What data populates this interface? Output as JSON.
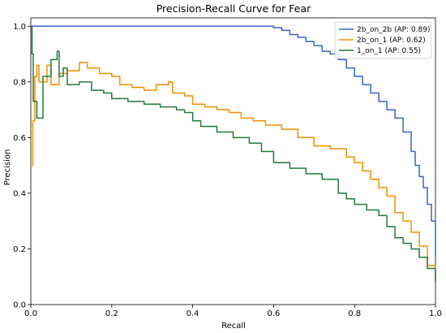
{
  "chart_data": {
    "type": "line",
    "title": "Precision-Recall Curve for Fear",
    "xlabel": "Recall",
    "ylabel": "Precision",
    "xlim": [
      0.0,
      1.0
    ],
    "ylim": [
      0.0,
      1.03
    ],
    "xticks": [
      "0.0",
      "0.2",
      "0.4",
      "0.6",
      "0.8",
      "1.0"
    ],
    "yticks": [
      "0.0",
      "0.2",
      "0.4",
      "0.6",
      "0.8",
      "1.0"
    ],
    "grid": false,
    "legend_position": "top-right",
    "series": [
      {
        "name": "2b_on_2b (AP: 0.89)",
        "color": "#3a64c8",
        "points": [
          [
            0.0,
            1.0
          ],
          [
            0.05,
            1.0
          ],
          [
            0.1,
            1.0
          ],
          [
            0.2,
            1.0
          ],
          [
            0.3,
            1.0
          ],
          [
            0.4,
            1.0
          ],
          [
            0.5,
            1.0
          ],
          [
            0.58,
            1.0
          ],
          [
            0.6,
            0.995
          ],
          [
            0.62,
            0.985
          ],
          [
            0.64,
            0.97
          ],
          [
            0.66,
            0.96
          ],
          [
            0.68,
            0.945
          ],
          [
            0.7,
            0.93
          ],
          [
            0.72,
            0.91
          ],
          [
            0.74,
            0.9
          ],
          [
            0.76,
            0.88
          ],
          [
            0.78,
            0.85
          ],
          [
            0.8,
            0.82
          ],
          [
            0.82,
            0.79
          ],
          [
            0.84,
            0.76
          ],
          [
            0.86,
            0.73
          ],
          [
            0.88,
            0.7
          ],
          [
            0.9,
            0.67
          ],
          [
            0.92,
            0.62
          ],
          [
            0.94,
            0.55
          ],
          [
            0.95,
            0.5
          ],
          [
            0.96,
            0.46
          ],
          [
            0.97,
            0.42
          ],
          [
            0.98,
            0.36
          ],
          [
            0.99,
            0.3
          ],
          [
            1.0,
            0.17
          ]
        ]
      },
      {
        "name": "2b_on_1 (AP: 0.62)",
        "color": "#f28e00",
        "points": [
          [
            0.0,
            0.5
          ],
          [
            0.005,
            0.66
          ],
          [
            0.01,
            0.82
          ],
          [
            0.015,
            0.86
          ],
          [
            0.02,
            0.8
          ],
          [
            0.03,
            0.8
          ],
          [
            0.04,
            0.86
          ],
          [
            0.05,
            0.79
          ],
          [
            0.07,
            0.83
          ],
          [
            0.09,
            0.84
          ],
          [
            0.12,
            0.87
          ],
          [
            0.14,
            0.85
          ],
          [
            0.17,
            0.83
          ],
          [
            0.2,
            0.82
          ],
          [
            0.22,
            0.79
          ],
          [
            0.25,
            0.78
          ],
          [
            0.28,
            0.77
          ],
          [
            0.31,
            0.79
          ],
          [
            0.34,
            0.8
          ],
          [
            0.35,
            0.76
          ],
          [
            0.38,
            0.75
          ],
          [
            0.4,
            0.72
          ],
          [
            0.43,
            0.71
          ],
          [
            0.46,
            0.7
          ],
          [
            0.49,
            0.69
          ],
          [
            0.52,
            0.67
          ],
          [
            0.55,
            0.66
          ],
          [
            0.58,
            0.645
          ],
          [
            0.62,
            0.63
          ],
          [
            0.66,
            0.6
          ],
          [
            0.7,
            0.57
          ],
          [
            0.74,
            0.56
          ],
          [
            0.78,
            0.53
          ],
          [
            0.8,
            0.51
          ],
          [
            0.82,
            0.48
          ],
          [
            0.84,
            0.45
          ],
          [
            0.86,
            0.42
          ],
          [
            0.88,
            0.39
          ],
          [
            0.9,
            0.33
          ],
          [
            0.92,
            0.3
          ],
          [
            0.94,
            0.26
          ],
          [
            0.96,
            0.21
          ],
          [
            0.98,
            0.14
          ],
          [
            1.0,
            0.09
          ]
        ]
      },
      {
        "name": "1_on_1 (AP: 0.55)",
        "color": "#1f7a3a",
        "points": [
          [
            0.0,
            1.0
          ],
          [
            0.003,
            0.9
          ],
          [
            0.006,
            0.73
          ],
          [
            0.015,
            0.67
          ],
          [
            0.03,
            0.82
          ],
          [
            0.05,
            0.88
          ],
          [
            0.065,
            0.91
          ],
          [
            0.07,
            0.82
          ],
          [
            0.08,
            0.85
          ],
          [
            0.09,
            0.79
          ],
          [
            0.12,
            0.8
          ],
          [
            0.15,
            0.77
          ],
          [
            0.18,
            0.76
          ],
          [
            0.2,
            0.74
          ],
          [
            0.24,
            0.73
          ],
          [
            0.28,
            0.72
          ],
          [
            0.32,
            0.71
          ],
          [
            0.36,
            0.7
          ],
          [
            0.38,
            0.69
          ],
          [
            0.4,
            0.66
          ],
          [
            0.42,
            0.64
          ],
          [
            0.46,
            0.62
          ],
          [
            0.5,
            0.6
          ],
          [
            0.54,
            0.58
          ],
          [
            0.57,
            0.55
          ],
          [
            0.6,
            0.51
          ],
          [
            0.64,
            0.49
          ],
          [
            0.68,
            0.47
          ],
          [
            0.72,
            0.45
          ],
          [
            0.76,
            0.4
          ],
          [
            0.78,
            0.38
          ],
          [
            0.8,
            0.36
          ],
          [
            0.83,
            0.34
          ],
          [
            0.86,
            0.32
          ],
          [
            0.88,
            0.28
          ],
          [
            0.9,
            0.24
          ],
          [
            0.92,
            0.22
          ],
          [
            0.94,
            0.2
          ],
          [
            0.96,
            0.17
          ],
          [
            0.98,
            0.13
          ],
          [
            1.0,
            0.08
          ]
        ]
      }
    ]
  }
}
